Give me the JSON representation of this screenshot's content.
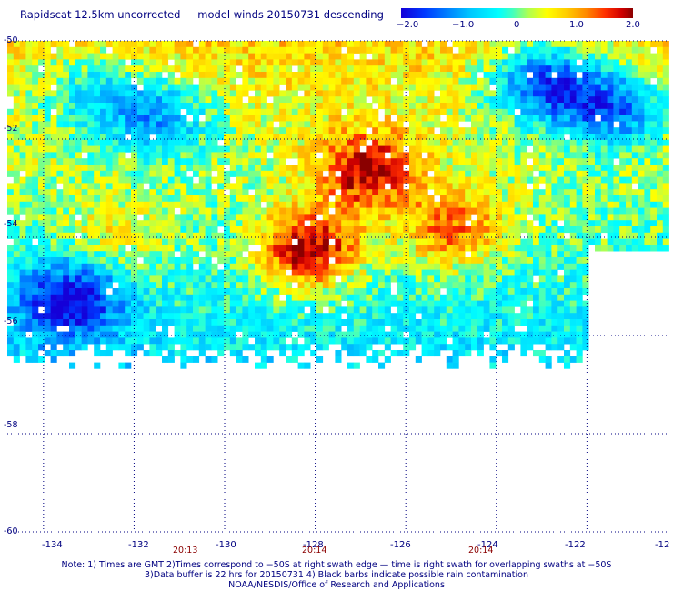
{
  "header": {
    "title": "Rapidscat 12.5km uncorrected — model winds 20150731 descending"
  },
  "colorbar": {
    "labels": [
      "−2.0",
      "−1.0",
      "0",
      "1.0",
      "2.0"
    ],
    "range": [
      -2.0,
      2.0
    ]
  },
  "axes": {
    "lat_labels": [
      "-50",
      "-52",
      "-54",
      "-56",
      "-58",
      "-60"
    ],
    "lon_labels": [
      "-134",
      "-132",
      "-130",
      "-128",
      "-126",
      "-124",
      "-122",
      "-12"
    ],
    "time_labels": [
      "20:13",
      "20:14",
      "20:14"
    ]
  },
  "notes": {
    "line1": "Note: 1) Times are GMT 2)Times correspond to −50S at right swath edge — time is right swath for overlapping swaths at −50S",
    "line2": "3)Data buffer is 22 hrs for 20150731 4) Black barbs indicate possible rain contamination",
    "line3": "NOAA/NESDIS/Office of Research and Applications"
  },
  "map": {
    "lat_range": [
      -60,
      -50
    ],
    "lon_range": [
      -134.8,
      -120.2
    ],
    "swath_lat_range": [
      -56.6,
      -50
    ],
    "swath_lon_range": [
      -134.8,
      -122
    ],
    "swath_extension": {
      "lon_range": [
        -122,
        -120.2
      ],
      "lat_range": [
        -54.25,
        -50
      ]
    },
    "hotspots": [
      {
        "lon": -128.2,
        "lat": -54.2,
        "value": 2.0
      },
      {
        "lon": -126.9,
        "lat": -52.6,
        "value": 1.7
      },
      {
        "lon": -125.0,
        "lat": -53.8,
        "value": 1.3
      },
      {
        "lon": -132.5,
        "lat": -53.9,
        "value": 0.6
      },
      {
        "lon": -133.5,
        "lat": -55.2,
        "value": -1.8
      },
      {
        "lon": -123.0,
        "lat": -50.8,
        "value": -2.0
      },
      {
        "lon": -121.5,
        "lat": -51.3,
        "value": -1.8
      },
      {
        "lon": -131.5,
        "lat": -51.5,
        "value": -1.4
      },
      {
        "lon": -133.0,
        "lat": -51.0,
        "value": -1.0
      }
    ]
  }
}
